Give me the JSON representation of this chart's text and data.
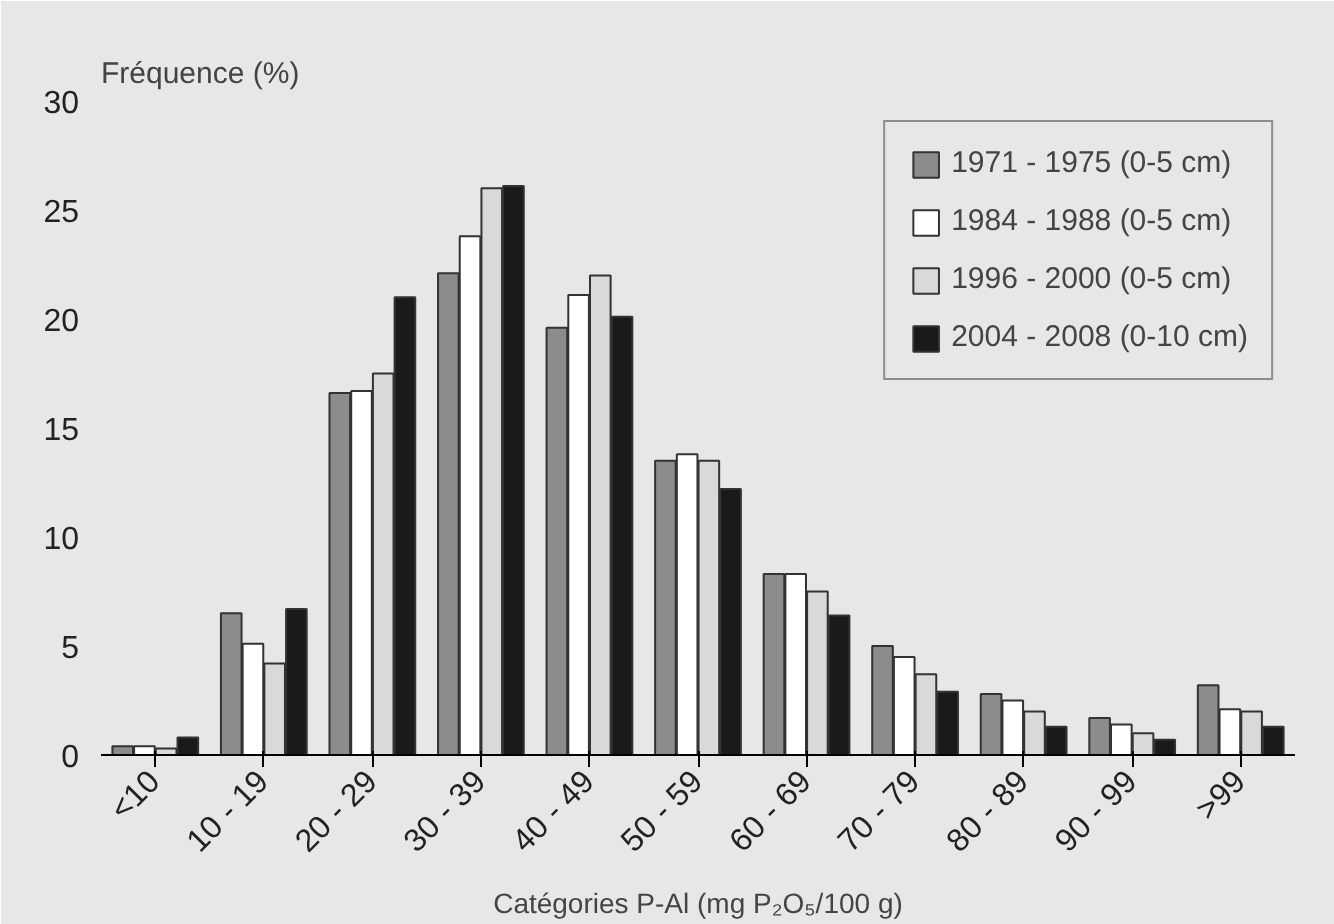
{
  "chart_data": {
    "type": "bar",
    "ylabel": "Fréquence (%)",
    "xlabel": "Catégories P-Al (mg P₂O₅/100 g)",
    "categories": [
      "<10",
      "10 - 19",
      "20 - 29",
      "30 - 39",
      "40 - 49",
      "50 - 59",
      "60 - 69",
      "70 - 79",
      "80 - 89",
      "90 - 99",
      ">99"
    ],
    "series": [
      {
        "name": "1971 - 1975 (0-5 cm)",
        "color": "#8c8c8c",
        "values": [
          0.4,
          6.5,
          16.6,
          22.1,
          19.6,
          13.5,
          8.3,
          5.0,
          2.8,
          1.7,
          3.2
        ]
      },
      {
        "name": "1984 - 1988 (0-5 cm)",
        "color": "#ffffff",
        "values": [
          0.4,
          5.1,
          16.7,
          23.8,
          21.1,
          13.8,
          8.3,
          4.5,
          2.5,
          1.4,
          2.1
        ]
      },
      {
        "name": "1996 - 2000 (0-5 cm)",
        "color": "#d9d9d9",
        "values": [
          0.3,
          4.2,
          17.5,
          26.0,
          22.0,
          13.5,
          7.5,
          3.7,
          2.0,
          1.0,
          2.0
        ]
      },
      {
        "name": "2004 - 2008 (0-10 cm)",
        "color": "#1a1a1a",
        "values": [
          0.8,
          6.7,
          21.0,
          26.1,
          20.1,
          12.2,
          6.4,
          2.9,
          1.3,
          0.7,
          1.3
        ]
      }
    ],
    "ylim": [
      0,
      30
    ],
    "yticks": [
      0,
      5,
      10,
      15,
      20,
      25,
      30
    ],
    "legend": "top right"
  }
}
